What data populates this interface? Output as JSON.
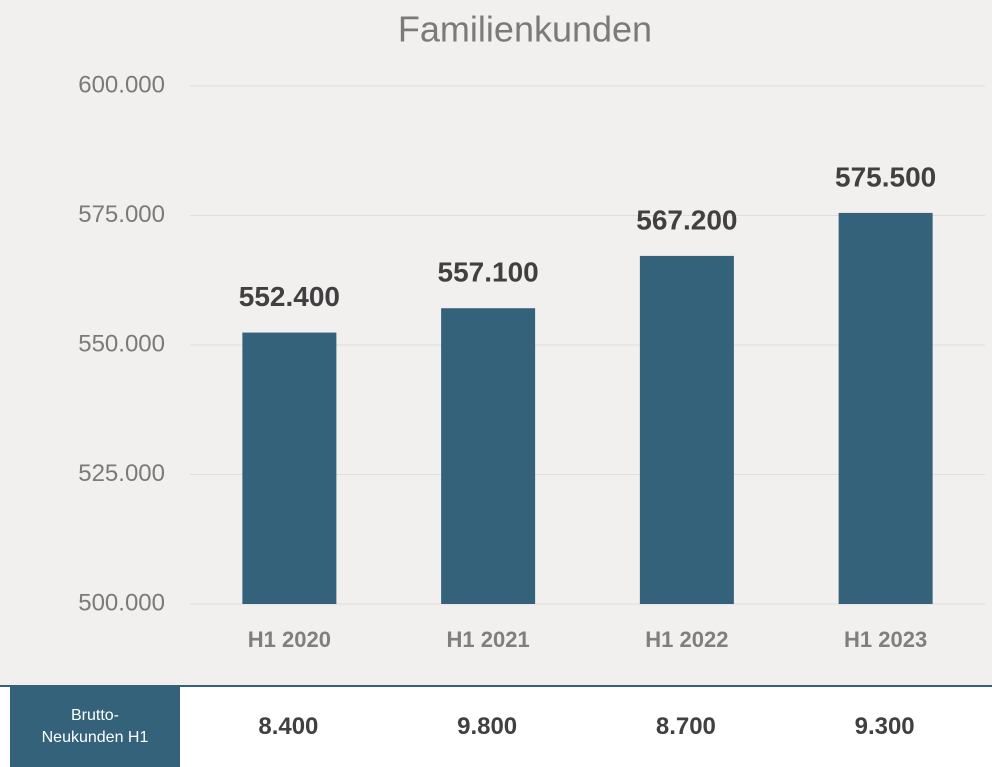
{
  "chart_data": {
    "type": "bar",
    "title": "Familienkunden",
    "categories": [
      "H1 2020",
      "H1 2021",
      "H1 2022",
      "H1 2023"
    ],
    "values": [
      552400,
      557100,
      567200,
      575500
    ],
    "value_labels": [
      "552.400",
      "557.100",
      "567.200",
      "575.500"
    ],
    "color": "#33627a",
    "ylim": [
      500000,
      600000
    ],
    "yticks": [
      {
        "value": 500000,
        "label": "500.000"
      },
      {
        "value": 525000,
        "label": "525.000"
      },
      {
        "value": 550000,
        "label": "550.000"
      },
      {
        "value": 575000,
        "label": "575.000"
      },
      {
        "value": 600000,
        "label": "600.000"
      }
    ],
    "grid": true
  },
  "table": {
    "header": "Brutto-Neukunden H1",
    "cells": [
      "8.400",
      "9.800",
      "8.700",
      "9.300"
    ]
  }
}
